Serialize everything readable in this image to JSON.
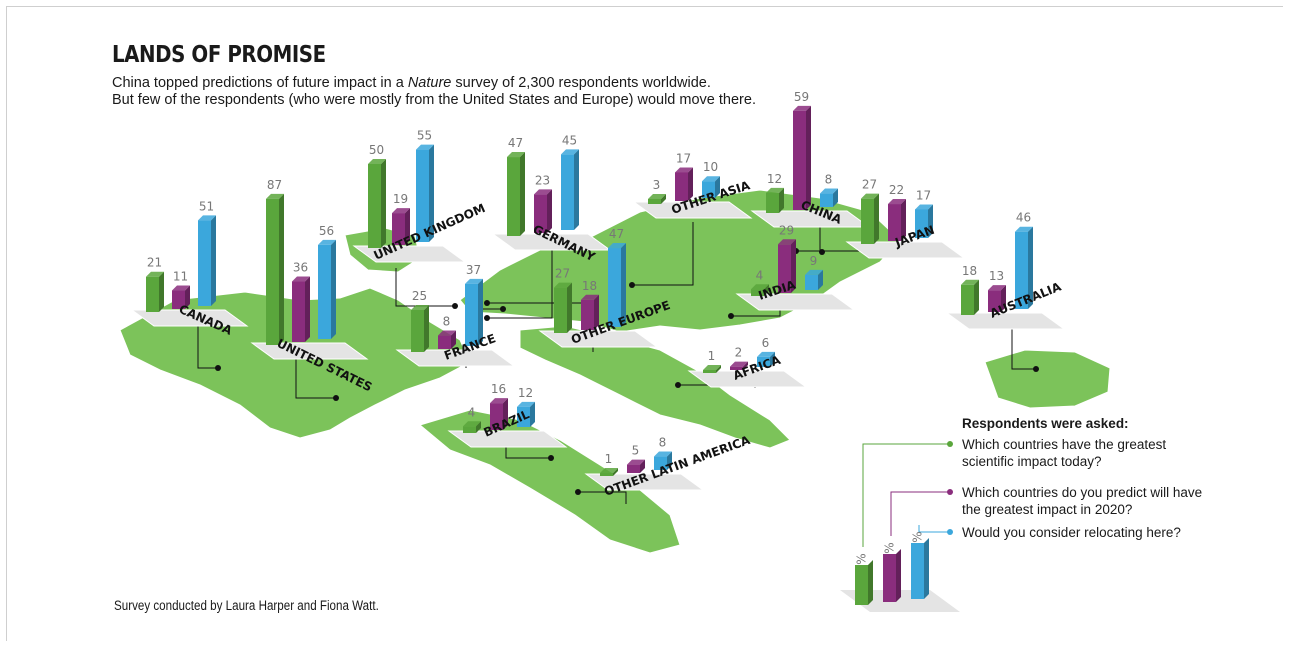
{
  "title": "LANDS OF PROMISE",
  "subtitle": {
    "line1_a": "China topped predictions of future impact in a ",
    "line1_italic": "Nature",
    "line1_b": " survey of 2,300 respondents worldwide.",
    "line2": "But few of the respondents (who were mostly from the United States and Europe) would move there."
  },
  "credit": "Survey conducted by Laura Harper and Fiona Watt.",
  "colors": {
    "impact_today": "#5aa63c",
    "impact_2020": "#8a2d7d",
    "relocate": "#3ba7dc",
    "land": "#7cc35a"
  },
  "legend": {
    "heading": "Respondents were asked:",
    "items": [
      {
        "text": "Which countries have the greatest scientific impact today?",
        "color": "#5aa63c"
      },
      {
        "text": "Which countries do you predict will have the greatest impact in 2020?",
        "color": "#8a2d7d"
      },
      {
        "text": "Would you consider relocating here?",
        "color": "#3ba7dc"
      }
    ],
    "unit": "%"
  },
  "chart_data": {
    "type": "bar",
    "unit": "%",
    "series": [
      {
        "name": "Which countries have the greatest scientific impact today?",
        "color": "#5aa63c"
      },
      {
        "name": "Which countries do you predict will have the greatest impact in 2020?",
        "color": "#8a2d7d"
      },
      {
        "name": "Would you consider relocating here?",
        "color": "#3ba7dc"
      }
    ],
    "categories": [
      "CANADA",
      "UNITED STATES",
      "UNITED KINGDOM",
      "GERMANY",
      "FRANCE",
      "OTHER EUROPE",
      "OTHER ASIA",
      "CHINA",
      "JAPAN",
      "INDIA",
      "AUSTRALIA",
      "AFRICA",
      "BRAZIL",
      "OTHER LATIN AMERICA"
    ],
    "values": [
      [
        21,
        11,
        51
      ],
      [
        87,
        36,
        56
      ],
      [
        50,
        19,
        55
      ],
      [
        47,
        23,
        45
      ],
      [
        25,
        8,
        37
      ],
      [
        27,
        18,
        47
      ],
      [
        3,
        17,
        10
      ],
      [
        12,
        59,
        8
      ],
      [
        27,
        22,
        17
      ],
      [
        4,
        29,
        9
      ],
      [
        18,
        13,
        46
      ],
      [
        1,
        2,
        6
      ],
      [
        4,
        16,
        12
      ],
      [
        1,
        5,
        8
      ]
    ]
  }
}
